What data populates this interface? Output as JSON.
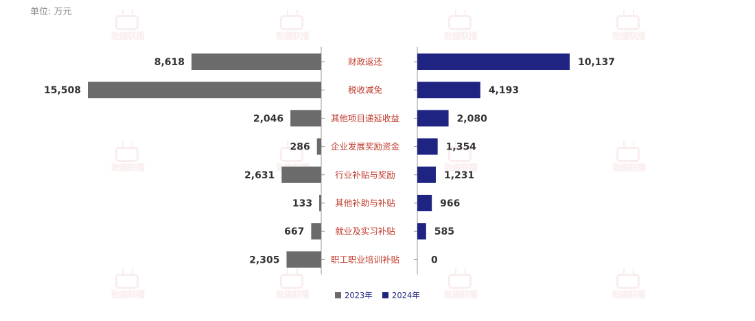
{
  "unit_label": "单位: 万元",
  "watermark_text": "致趣联播",
  "colors": {
    "series_2023": "#6b6b6b",
    "series_2024": "#1f2483",
    "category_label": "#c0392b",
    "axis": "#999999",
    "value_label": "#333333",
    "legend_text": "#1f2483"
  },
  "chart_data": {
    "type": "bar",
    "orientation": "horizontal-butterfly",
    "categories": [
      "财政返还",
      "税收减免",
      "其他项目递延收益",
      "企业发展奖励资金",
      "行业补贴与奖励",
      "其他补助与补贴",
      "就业及实习补贴",
      "职工职业培训补贴"
    ],
    "series": [
      {
        "name": "2023年",
        "values": [
          8618,
          15508,
          2046,
          286,
          2631,
          133,
          667,
          2305
        ],
        "labels": [
          "8,618",
          "15,508",
          "2,046",
          "286",
          "2,631",
          "133",
          "667",
          "2,305"
        ]
      },
      {
        "name": "2024年",
        "values": [
          10137,
          4193,
          2080,
          1354,
          1231,
          966,
          585,
          0
        ],
        "labels": [
          "10,137",
          "4,193",
          "2,080",
          "1,354",
          "1,231",
          "966",
          "585",
          "0"
        ]
      }
    ],
    "legend_position": "bottom",
    "grid": false
  }
}
